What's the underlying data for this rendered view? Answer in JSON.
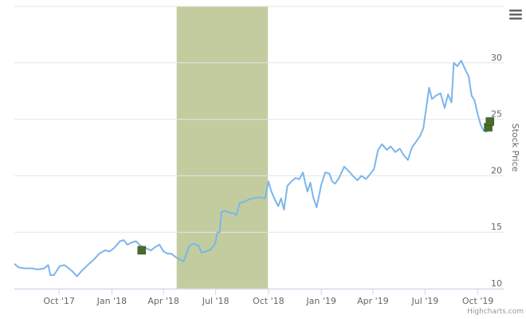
{
  "chart_data": {
    "type": "line",
    "title": "",
    "xlabel": "",
    "ylabel": "Stock Price",
    "ylim": [
      10,
      35
    ],
    "xlim": [
      "2017-07-15",
      "2019-11-15"
    ],
    "y_axis_side": "right",
    "grid": "horizontal",
    "y_ticks": [
      10,
      15,
      20,
      25,
      30
    ],
    "x_ticks": [
      {
        "date": "2017-10-01",
        "label": "Oct '17"
      },
      {
        "date": "2018-01-01",
        "label": "Jan '18"
      },
      {
        "date": "2018-04-01",
        "label": "Apr '18"
      },
      {
        "date": "2018-07-01",
        "label": "Jul '18"
      },
      {
        "date": "2018-10-01",
        "label": "Oct '18"
      },
      {
        "date": "2019-01-01",
        "label": "Jan '19"
      },
      {
        "date": "2019-04-01",
        "label": "Apr '19"
      },
      {
        "date": "2019-07-01",
        "label": "Jul '19"
      },
      {
        "date": "2019-10-01",
        "label": "Oct '19"
      }
    ],
    "plot_band": {
      "from": "2018-04-24",
      "to": "2018-09-30",
      "color": "#c2cc9f"
    },
    "series": [
      {
        "color": "#7cb5ec",
        "points": [
          [
            "2017-07-15",
            12.2
          ],
          [
            "2017-07-22",
            11.9
          ],
          [
            "2017-08-01",
            11.8
          ],
          [
            "2017-08-15",
            11.8
          ],
          [
            "2017-08-25",
            11.7
          ],
          [
            "2017-09-05",
            11.8
          ],
          [
            "2017-09-12",
            12.1
          ],
          [
            "2017-09-16",
            11.2
          ],
          [
            "2017-09-22",
            11.2
          ],
          [
            "2017-10-02",
            12.0
          ],
          [
            "2017-10-10",
            12.1
          ],
          [
            "2017-10-18",
            11.8
          ],
          [
            "2017-10-25",
            11.5
          ],
          [
            "2017-11-01",
            11.1
          ],
          [
            "2017-11-10",
            11.6
          ],
          [
            "2017-11-20",
            12.1
          ],
          [
            "2017-12-01",
            12.6
          ],
          [
            "2017-12-10",
            13.1
          ],
          [
            "2017-12-20",
            13.4
          ],
          [
            "2017-12-28",
            13.3
          ],
          [
            "2018-01-05",
            13.6
          ],
          [
            "2018-01-15",
            14.2
          ],
          [
            "2018-01-22",
            14.3
          ],
          [
            "2018-01-28",
            13.9
          ],
          [
            "2018-02-05",
            14.1
          ],
          [
            "2018-02-12",
            14.2
          ],
          [
            "2018-02-20",
            13.8
          ],
          [
            "2018-03-01",
            13.6
          ],
          [
            "2018-03-10",
            13.4
          ],
          [
            "2018-03-18",
            13.7
          ],
          [
            "2018-03-25",
            13.9
          ],
          [
            "2018-04-01",
            13.3
          ],
          [
            "2018-04-08",
            13.1
          ],
          [
            "2018-04-15",
            13.1
          ],
          [
            "2018-04-22",
            12.8
          ],
          [
            "2018-04-29",
            12.6
          ],
          [
            "2018-05-06",
            12.4
          ],
          [
            "2018-05-11",
            13.1
          ],
          [
            "2018-05-16",
            13.8
          ],
          [
            "2018-05-23",
            14.0
          ],
          [
            "2018-06-01",
            13.8
          ],
          [
            "2018-06-06",
            13.2
          ],
          [
            "2018-06-14",
            13.3
          ],
          [
            "2018-06-23",
            13.5
          ],
          [
            "2018-06-30",
            14.0
          ],
          [
            "2018-07-04",
            15.0
          ],
          [
            "2018-07-08",
            15.0
          ],
          [
            "2018-07-11",
            16.8
          ],
          [
            "2018-07-18",
            16.9
          ],
          [
            "2018-07-26",
            16.7
          ],
          [
            "2018-08-01",
            16.7
          ],
          [
            "2018-08-06",
            16.5
          ],
          [
            "2018-08-12",
            17.6
          ],
          [
            "2018-08-20",
            17.7
          ],
          [
            "2018-08-28",
            17.9
          ],
          [
            "2018-09-05",
            18.0
          ],
          [
            "2018-09-15",
            18.1
          ],
          [
            "2018-09-25",
            18.0
          ],
          [
            "2018-10-01",
            19.5
          ],
          [
            "2018-10-06",
            18.6
          ],
          [
            "2018-10-12",
            17.9
          ],
          [
            "2018-10-18",
            17.3
          ],
          [
            "2018-10-23",
            18.0
          ],
          [
            "2018-10-28",
            17.0
          ],
          [
            "2018-11-03",
            19.1
          ],
          [
            "2018-11-10",
            19.5
          ],
          [
            "2018-11-17",
            19.8
          ],
          [
            "2018-11-24",
            19.7
          ],
          [
            "2018-11-30",
            20.3
          ],
          [
            "2018-12-04",
            19.4
          ],
          [
            "2018-12-08",
            18.6
          ],
          [
            "2018-12-13",
            19.4
          ],
          [
            "2018-12-18",
            18.1
          ],
          [
            "2018-12-24",
            17.2
          ],
          [
            "2019-01-01",
            19.2
          ],
          [
            "2019-01-08",
            20.3
          ],
          [
            "2019-01-15",
            20.2
          ],
          [
            "2019-01-20",
            19.5
          ],
          [
            "2019-01-25",
            19.3
          ],
          [
            "2019-02-01",
            19.8
          ],
          [
            "2019-02-10",
            20.8
          ],
          [
            "2019-02-18",
            20.4
          ],
          [
            "2019-02-25",
            20.0
          ],
          [
            "2019-03-05",
            19.6
          ],
          [
            "2019-03-12",
            20.0
          ],
          [
            "2019-03-20",
            19.7
          ],
          [
            "2019-03-28",
            20.2
          ],
          [
            "2019-04-03",
            20.6
          ],
          [
            "2019-04-10",
            22.3
          ],
          [
            "2019-04-17",
            22.8
          ],
          [
            "2019-04-25",
            22.3
          ],
          [
            "2019-05-02",
            22.6
          ],
          [
            "2019-05-10",
            22.1
          ],
          [
            "2019-05-18",
            22.4
          ],
          [
            "2019-05-25",
            21.8
          ],
          [
            "2019-06-01",
            21.4
          ],
          [
            "2019-06-08",
            22.5
          ],
          [
            "2019-06-15",
            23.0
          ],
          [
            "2019-06-22",
            23.5
          ],
          [
            "2019-06-28",
            24.2
          ],
          [
            "2019-07-03",
            26.0
          ],
          [
            "2019-07-08",
            27.8
          ],
          [
            "2019-07-13",
            26.8
          ],
          [
            "2019-07-20",
            27.1
          ],
          [
            "2019-07-28",
            27.3
          ],
          [
            "2019-08-04",
            26.0
          ],
          [
            "2019-08-10",
            27.2
          ],
          [
            "2019-08-16",
            26.5
          ],
          [
            "2019-08-20",
            30.0
          ],
          [
            "2019-08-26",
            29.7
          ],
          [
            "2019-09-02",
            30.2
          ],
          [
            "2019-09-09",
            29.4
          ],
          [
            "2019-09-15",
            28.8
          ],
          [
            "2019-09-20",
            27.1
          ],
          [
            "2019-09-25",
            26.7
          ],
          [
            "2019-10-01",
            25.4
          ],
          [
            "2019-10-06",
            24.5
          ],
          [
            "2019-10-11",
            24.0
          ],
          [
            "2019-10-16",
            23.9
          ],
          [
            "2019-10-22",
            24.3
          ]
        ]
      }
    ],
    "markers": [
      {
        "date": "2018-02-22",
        "value": 13.4,
        "color": "#4a6b2a"
      },
      {
        "date": "2019-10-19",
        "value": 24.3,
        "color": "#4a6b2a"
      },
      {
        "date": "2019-10-22",
        "value": 24.8,
        "color": "#4a6b2a"
      }
    ]
  },
  "credits": "Highcharts.com",
  "menu_icon": "hamburger-icon"
}
